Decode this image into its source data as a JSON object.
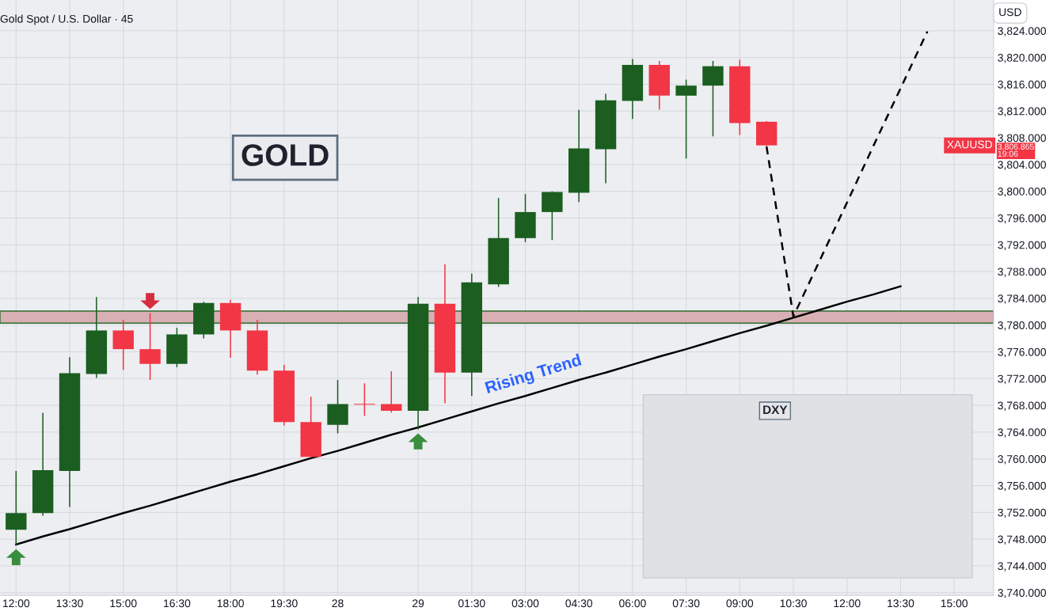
{
  "chart_data": {
    "type": "candlestick",
    "title": "Gold Spot / U.S. Dollar · 45",
    "ohlc": [
      [
        3749.4,
        3758.1,
        3747.2,
        3751.9
      ],
      [
        3751.9,
        3766.8,
        3751.6,
        3758.3
      ],
      [
        3758.2,
        3775.1,
        3752.9,
        3772.8
      ],
      [
        3772.7,
        3784.1,
        3772.2,
        3779.2
      ],
      [
        3779.2,
        3780.7,
        3773.4,
        3776.4
      ],
      [
        3776.4,
        3781.7,
        3771.9,
        3774.2
      ],
      [
        3774.2,
        3779.5,
        3773.8,
        3778.6
      ],
      [
        3778.6,
        3783.4,
        3778.1,
        3783.3
      ],
      [
        3783.3,
        3783.7,
        3775.2,
        3779.2
      ],
      [
        3779.2,
        3780.7,
        3772.7,
        3773.2
      ],
      [
        3773.2,
        3774.0,
        3765.1,
        3765.5
      ],
      [
        3765.5,
        3769.2,
        3760.3,
        3760.3
      ],
      [
        3765.1,
        3771.7,
        3763.9,
        3768.2
      ],
      [
        3768.2,
        3771.2,
        3766.5,
        3768.1
      ],
      [
        3768.2,
        3773.0,
        3767.0,
        3767.2
      ],
      [
        3767.2,
        3784.1,
        3764.5,
        3783.2
      ],
      [
        3783.2,
        3789.0,
        3768.4,
        3772.9
      ],
      [
        3772.9,
        3787.6,
        3769.5,
        3786.4
      ],
      [
        3786.1,
        3798.9,
        3785.8,
        3793.0
      ],
      [
        3793.0,
        3799.5,
        3792.5,
        3796.9
      ],
      [
        3796.9,
        3799.9,
        3792.8,
        3799.9
      ],
      [
        3799.8,
        3812.1,
        3798.5,
        3806.4
      ],
      [
        3806.3,
        3814.5,
        3801.3,
        3813.6
      ],
      [
        3813.5,
        3819.7,
        3810.9,
        3818.9
      ],
      [
        3818.9,
        3819.4,
        3812.3,
        3814.3
      ],
      [
        3814.3,
        3816.6,
        3805.0,
        3815.8
      ],
      [
        3815.8,
        3819.4,
        3808.3,
        3818.7
      ],
      [
        3818.7,
        3819.6,
        3808.5,
        3810.2
      ],
      [
        3810.4,
        3810.4,
        3806.865,
        3806.865
      ],
      null,
      null,
      null,
      null,
      null,
      null,
      null,
      null
    ],
    "colors": [
      "#1b5e20",
      "#1b5e20",
      "#1b5e20",
      "#1b5e20",
      "#f23645",
      "#f23645",
      "#1b5e20",
      "#1b5e20",
      "#f23645",
      "#f23645",
      "#f23645",
      "#f23645",
      "#1b5e20",
      "#f23645",
      "#f23645",
      "#1b5e20",
      "#f23645",
      "#1b5e20",
      "#1b5e20",
      "#1b5e20",
      "#1b5e20",
      "#1b5e20",
      "#1b5e20",
      "#1b5e20",
      "#f23645",
      "#1b5e20",
      "#1b5e20",
      "#f23645",
      "#f23645",
      null,
      null,
      null,
      null,
      null,
      null,
      null,
      null
    ],
    "series": [
      {
        "type": "line",
        "values": [
          3747.2,
          3748.4,
          3749.5,
          3750.7,
          3751.9,
          3753.0,
          3754.2,
          3755.4,
          3756.6,
          3757.7,
          3758.9,
          3760.1,
          3761.2,
          3762.4,
          3763.6,
          3764.7,
          3765.9,
          3767.1,
          3768.3,
          3769.4,
          3770.6,
          3771.8,
          3772.9,
          3774.1,
          3775.3,
          3776.4,
          3777.6,
          3778.8,
          3779.9,
          3781.1,
          3782.3,
          3783.5,
          3784.6,
          3785.8,
          null,
          null,
          null
        ],
        "color": "#000000",
        "line_style": "solid"
      },
      {
        "type": "line",
        "values": [
          null,
          null,
          null,
          null,
          null,
          null,
          null,
          null,
          null,
          null,
          null,
          null,
          null,
          null,
          null,
          null,
          null,
          null,
          null,
          null,
          null,
          null,
          null,
          null,
          null,
          null,
          null,
          null,
          3806.7,
          3781.3,
          3789.8,
          3798.3,
          3806.9,
          3815.4,
          3823.9,
          null,
          null
        ],
        "color": "#000000",
        "line_style": "dashed"
      }
    ],
    "categories": [
      "12:00",
      null,
      "13:30",
      null,
      "15:00",
      null,
      "16:30",
      null,
      "18:00",
      null,
      "19:30",
      null,
      "28",
      null,
      null,
      "29",
      null,
      "01:30",
      null,
      "03:00",
      null,
      "04:30",
      null,
      "06:00",
      null,
      "07:30",
      null,
      "09:00",
      null,
      "10:30",
      null,
      "12:00",
      null,
      "13:30",
      null,
      "15:00",
      null
    ],
    "ylim": [
      3739.6,
      3828.6
    ],
    "yticks": [
      {
        "value": 3740,
        "label": "3,740.000"
      },
      {
        "value": 3744,
        "label": "3,744.000"
      },
      {
        "value": 3748,
        "label": "3,748.000"
      },
      {
        "value": 3752,
        "label": "3,752.000"
      },
      {
        "value": 3756,
        "label": "3,756.000"
      },
      {
        "value": 3760,
        "label": "3,760.000"
      },
      {
        "value": 3764,
        "label": "3,764.000"
      },
      {
        "value": 3768,
        "label": "3,768.000"
      },
      {
        "value": 3772,
        "label": "3,772.000"
      },
      {
        "value": 3776,
        "label": "3,776.000"
      },
      {
        "value": 3780,
        "label": "3,780.000"
      },
      {
        "value": 3784,
        "label": "3,784.000"
      },
      {
        "value": 3788,
        "label": "3,788.000"
      },
      {
        "value": 3792,
        "label": "3,792.000"
      },
      {
        "value": 3796,
        "label": "3,796.000"
      },
      {
        "value": 3800,
        "label": "3,800.000"
      },
      {
        "value": 3804,
        "label": "3,804.000"
      },
      {
        "value": 3808,
        "label": "3,808.000"
      },
      {
        "value": 3812,
        "label": "3,812.000"
      },
      {
        "value": 3816,
        "label": "3,816.000"
      },
      {
        "value": 3820,
        "label": "3,820.000"
      },
      {
        "value": 3824,
        "label": "3,824.000"
      }
    ],
    "bands": [
      {
        "axis": "y",
        "from": 3780.3,
        "to": 3782.1,
        "color": "#d8b0b4"
      }
    ],
    "annotations": [
      "GOLD",
      "Rising Trend",
      "DXY",
      "USD",
      "XAUUSD",
      "3,806.865",
      "19:06"
    ],
    "grid": true
  }
}
